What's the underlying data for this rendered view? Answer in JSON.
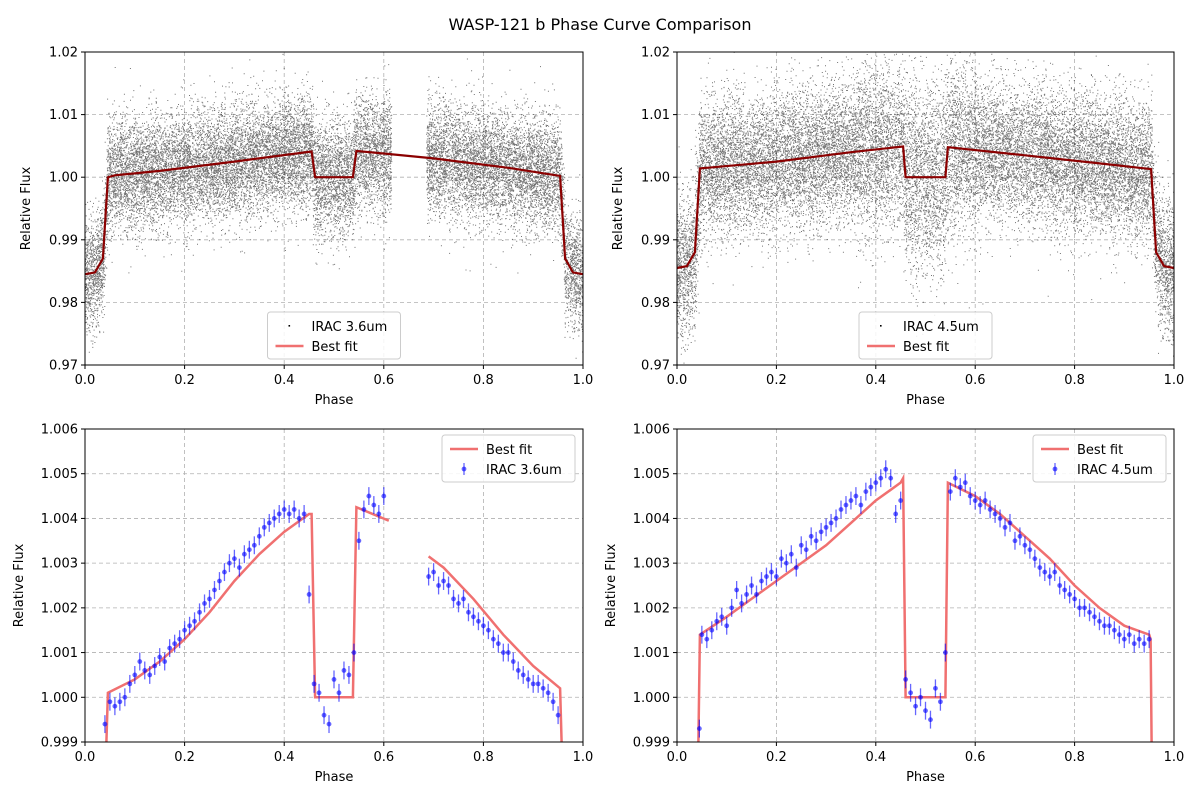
{
  "figure": {
    "title": "WASP-121 b Phase Curve Comparison"
  },
  "colors": {
    "scatter": "#000000",
    "binned": "#0000ff",
    "fit": "#f07070",
    "fit_dark": "#8b0000",
    "grid": "#b0b0b0",
    "legend_border": "#cccccc"
  },
  "chart_data": [
    {
      "id": "top-left",
      "type": "scatter",
      "xlabel": "Phase",
      "ylabel": "Relative Flux",
      "xlim": [
        0.0,
        1.0
      ],
      "ylim": [
        0.97,
        1.02
      ],
      "xticks": [
        "0.0",
        "0.2",
        "0.4",
        "0.6",
        "0.8",
        "1.0"
      ],
      "yticks": [
        "0.97",
        "0.98",
        "0.99",
        "1.00",
        "1.01",
        "1.02"
      ],
      "grid": true,
      "legend": {
        "position": "lower-center",
        "entries": [
          {
            "label": "IRAC 3.6um",
            "kind": "point"
          },
          {
            "label": "Best fit",
            "kind": "line"
          }
        ]
      },
      "scatter": {
        "name": "IRAC 3.6um",
        "noise": 0.0045,
        "gaps": [
          [
            0.615,
            0.685
          ]
        ]
      },
      "fit": {
        "name": "Best fit",
        "x": [
          0.0,
          0.02,
          0.036,
          0.046,
          0.06,
          0.15,
          0.3,
          0.455,
          0.462,
          0.538,
          0.545,
          0.7,
          0.85,
          0.954,
          0.964,
          0.98,
          1.0
        ],
        "y": [
          0.9845,
          0.9848,
          0.987,
          1.0,
          1.0003,
          1.001,
          1.0025,
          1.0041,
          1.0,
          1.0,
          1.0042,
          1.003,
          1.0015,
          1.0002,
          0.987,
          0.9848,
          0.9845
        ]
      }
    },
    {
      "id": "top-right",
      "type": "scatter",
      "xlabel": "Phase",
      "ylabel": "Relative Flux",
      "xlim": [
        0.0,
        1.0
      ],
      "ylim": [
        0.97,
        1.02
      ],
      "xticks": [
        "0.0",
        "0.2",
        "0.4",
        "0.6",
        "0.8",
        "1.0"
      ],
      "yticks": [
        "0.97",
        "0.98",
        "0.99",
        "1.00",
        "1.01",
        "1.02"
      ],
      "grid": true,
      "legend": {
        "position": "lower-center",
        "entries": [
          {
            "label": "IRAC 4.5um",
            "kind": "point"
          },
          {
            "label": "Best fit",
            "kind": "line"
          }
        ]
      },
      "scatter": {
        "name": "IRAC 4.5um",
        "noise": 0.0055,
        "gaps": []
      },
      "fit": {
        "name": "Best fit",
        "x": [
          0.0,
          0.02,
          0.036,
          0.046,
          0.06,
          0.2,
          0.35,
          0.455,
          0.46,
          0.54,
          0.545,
          0.7,
          0.85,
          0.954,
          0.964,
          0.98,
          1.0
        ],
        "y": [
          0.9855,
          0.9858,
          0.988,
          1.0014,
          1.0015,
          1.0025,
          1.004,
          1.0049,
          1.0,
          1.0,
          1.0048,
          1.0035,
          1.0022,
          1.0013,
          0.988,
          0.9858,
          0.9855
        ]
      }
    },
    {
      "id": "bottom-left",
      "type": "line",
      "xlabel": "Phase",
      "ylabel": "Relative Flux",
      "xlim": [
        0.0,
        1.0
      ],
      "ylim": [
        0.999,
        1.006
      ],
      "xticks": [
        "0.0",
        "0.2",
        "0.4",
        "0.6",
        "0.8",
        "1.0"
      ],
      "yticks": [
        "0.999",
        "1.000",
        "1.001",
        "1.002",
        "1.003",
        "1.004",
        "1.005",
        "1.006"
      ],
      "grid": true,
      "legend": {
        "position": "upper-right",
        "entries": [
          {
            "label": "Best fit",
            "kind": "line"
          },
          {
            "label": "IRAC 3.6um",
            "kind": "errorbar"
          }
        ]
      },
      "fit_segments": [
        {
          "x": [
            0.043,
            0.046,
            0.1,
            0.15,
            0.2,
            0.25,
            0.3,
            0.35,
            0.4,
            0.45,
            0.455,
            0.462,
            0.538,
            0.545,
            0.61
          ],
          "y": [
            0.999,
            1.0001,
            1.0004,
            1.0008,
            1.0013,
            1.0019,
            1.0026,
            1.0032,
            1.0037,
            1.0041,
            1.0041,
            1.0,
            1.0,
            1.00425,
            1.00395
          ]
        },
        {
          "x": [
            0.69,
            0.72,
            0.78,
            0.84,
            0.9,
            0.954,
            0.957
          ],
          "y": [
            1.00315,
            1.0029,
            1.0022,
            1.0014,
            1.0007,
            1.0002,
            0.999
          ]
        }
      ],
      "binned": {
        "name": "IRAC 3.6um",
        "err": 0.0002,
        "x": [
          0.04,
          0.05,
          0.06,
          0.07,
          0.08,
          0.09,
          0.1,
          0.11,
          0.12,
          0.13,
          0.14,
          0.15,
          0.16,
          0.17,
          0.18,
          0.19,
          0.2,
          0.21,
          0.22,
          0.23,
          0.24,
          0.25,
          0.26,
          0.27,
          0.28,
          0.29,
          0.3,
          0.31,
          0.32,
          0.33,
          0.34,
          0.35,
          0.36,
          0.37,
          0.38,
          0.39,
          0.4,
          0.41,
          0.42,
          0.43,
          0.44,
          0.45,
          0.46,
          0.47,
          0.48,
          0.49,
          0.5,
          0.51,
          0.52,
          0.53,
          0.54,
          0.55,
          0.56,
          0.57,
          0.58,
          0.59,
          0.6,
          0.69,
          0.7,
          0.71,
          0.72,
          0.73,
          0.74,
          0.75,
          0.76,
          0.77,
          0.78,
          0.79,
          0.8,
          0.81,
          0.82,
          0.83,
          0.84,
          0.85,
          0.86,
          0.87,
          0.88,
          0.89,
          0.9,
          0.91,
          0.92,
          0.93,
          0.94,
          0.95
        ],
        "y": [
          0.9994,
          0.9999,
          0.9998,
          0.9999,
          1.0,
          1.0003,
          1.0005,
          1.0008,
          1.0006,
          1.0005,
          1.0007,
          1.0009,
          1.0008,
          1.0011,
          1.0012,
          1.0013,
          1.0015,
          1.0016,
          1.0017,
          1.0019,
          1.0021,
          1.0022,
          1.0024,
          1.0026,
          1.0028,
          1.003,
          1.0031,
          1.0029,
          1.0032,
          1.0033,
          1.0034,
          1.0036,
          1.0038,
          1.0039,
          1.004,
          1.0041,
          1.0042,
          1.0041,
          1.0042,
          1.004,
          1.0041,
          1.0023,
          1.0003,
          1.0001,
          0.9996,
          0.9994,
          1.0004,
          1.0001,
          1.0006,
          1.0005,
          1.001,
          1.0035,
          1.0042,
          1.0045,
          1.0043,
          1.0041,
          1.0045,
          1.0027,
          1.0028,
          1.0025,
          1.0026,
          1.0025,
          1.0022,
          1.0021,
          1.0022,
          1.0019,
          1.0018,
          1.0017,
          1.0016,
          1.0015,
          1.0013,
          1.0012,
          1.001,
          1.001,
          1.0008,
          1.0006,
          1.0005,
          1.0004,
          1.0003,
          1.0003,
          1.0002,
          1.0001,
          0.9999,
          0.9996
        ]
      }
    },
    {
      "id": "bottom-right",
      "type": "line",
      "xlabel": "Phase",
      "ylabel": "Relative Flux",
      "xlim": [
        0.0,
        1.0
      ],
      "ylim": [
        0.999,
        1.006
      ],
      "xticks": [
        "0.0",
        "0.2",
        "0.4",
        "0.6",
        "0.8",
        "1.0"
      ],
      "yticks": [
        "0.999",
        "1.000",
        "1.001",
        "1.002",
        "1.003",
        "1.004",
        "1.005",
        "1.006"
      ],
      "grid": true,
      "legend": {
        "position": "upper-right",
        "entries": [
          {
            "label": "Best fit",
            "kind": "line"
          },
          {
            "label": "IRAC 4.5um",
            "kind": "errorbar"
          }
        ]
      },
      "fit_segments": [
        {
          "x": [
            0.043,
            0.046,
            0.1,
            0.15,
            0.2,
            0.25,
            0.3,
            0.35,
            0.4,
            0.45,
            0.455,
            0.46,
            0.54,
            0.545,
            0.6,
            0.65,
            0.7,
            0.75,
            0.8,
            0.85,
            0.9,
            0.95,
            0.953,
            0.955
          ],
          "y": [
            0.999,
            1.0014,
            1.0018,
            1.0022,
            1.0026,
            1.003,
            1.0034,
            1.0039,
            1.0044,
            1.0048,
            1.0049,
            1.0,
            1.0,
            1.0048,
            1.0045,
            1.0041,
            1.0036,
            1.0031,
            1.0025,
            1.002,
            1.0016,
            1.0014,
            1.0013,
            0.999
          ]
        }
      ],
      "binned": {
        "name": "IRAC 4.5um",
        "err": 0.0002,
        "x": [
          0.045,
          0.05,
          0.06,
          0.07,
          0.08,
          0.09,
          0.1,
          0.11,
          0.12,
          0.13,
          0.14,
          0.15,
          0.16,
          0.17,
          0.18,
          0.19,
          0.2,
          0.21,
          0.22,
          0.23,
          0.24,
          0.25,
          0.26,
          0.27,
          0.28,
          0.29,
          0.3,
          0.31,
          0.32,
          0.33,
          0.34,
          0.35,
          0.36,
          0.37,
          0.38,
          0.39,
          0.4,
          0.41,
          0.42,
          0.43,
          0.44,
          0.45,
          0.46,
          0.47,
          0.48,
          0.49,
          0.5,
          0.51,
          0.52,
          0.53,
          0.54,
          0.55,
          0.56,
          0.57,
          0.58,
          0.59,
          0.6,
          0.61,
          0.62,
          0.63,
          0.64,
          0.65,
          0.66,
          0.67,
          0.68,
          0.69,
          0.7,
          0.71,
          0.72,
          0.73,
          0.74,
          0.75,
          0.76,
          0.77,
          0.78,
          0.79,
          0.8,
          0.81,
          0.82,
          0.83,
          0.84,
          0.85,
          0.86,
          0.87,
          0.88,
          0.89,
          0.9,
          0.91,
          0.92,
          0.93,
          0.94,
          0.95
        ],
        "y": [
          0.9993,
          1.0014,
          1.0013,
          1.0015,
          1.0017,
          1.0018,
          1.0016,
          1.002,
          1.0024,
          1.0021,
          1.0023,
          1.0025,
          1.0023,
          1.0026,
          1.0027,
          1.0028,
          1.0027,
          1.0031,
          1.003,
          1.0032,
          1.0029,
          1.0034,
          1.0033,
          1.0036,
          1.0035,
          1.0037,
          1.0038,
          1.0039,
          1.004,
          1.0042,
          1.0043,
          1.0044,
          1.0045,
          1.0043,
          1.0046,
          1.0047,
          1.0048,
          1.0049,
          1.0051,
          1.0049,
          1.0041,
          1.0044,
          1.0004,
          1.0001,
          0.9998,
          1.0,
          0.9997,
          0.9995,
          1.0002,
          0.9999,
          1.001,
          1.0046,
          1.0049,
          1.0047,
          1.0048,
          1.0045,
          1.0044,
          1.0043,
          1.0044,
          1.0042,
          1.0041,
          1.004,
          1.0038,
          1.0039,
          1.0035,
          1.0036,
          1.0034,
          1.0033,
          1.0031,
          1.0029,
          1.0028,
          1.0027,
          1.0028,
          1.0025,
          1.0024,
          1.0023,
          1.0022,
          1.002,
          1.002,
          1.0019,
          1.0018,
          1.0017,
          1.0016,
          1.0016,
          1.0015,
          1.0014,
          1.0013,
          1.0014,
          1.0012,
          1.0013,
          1.0012,
          1.0013
        ]
      }
    }
  ]
}
